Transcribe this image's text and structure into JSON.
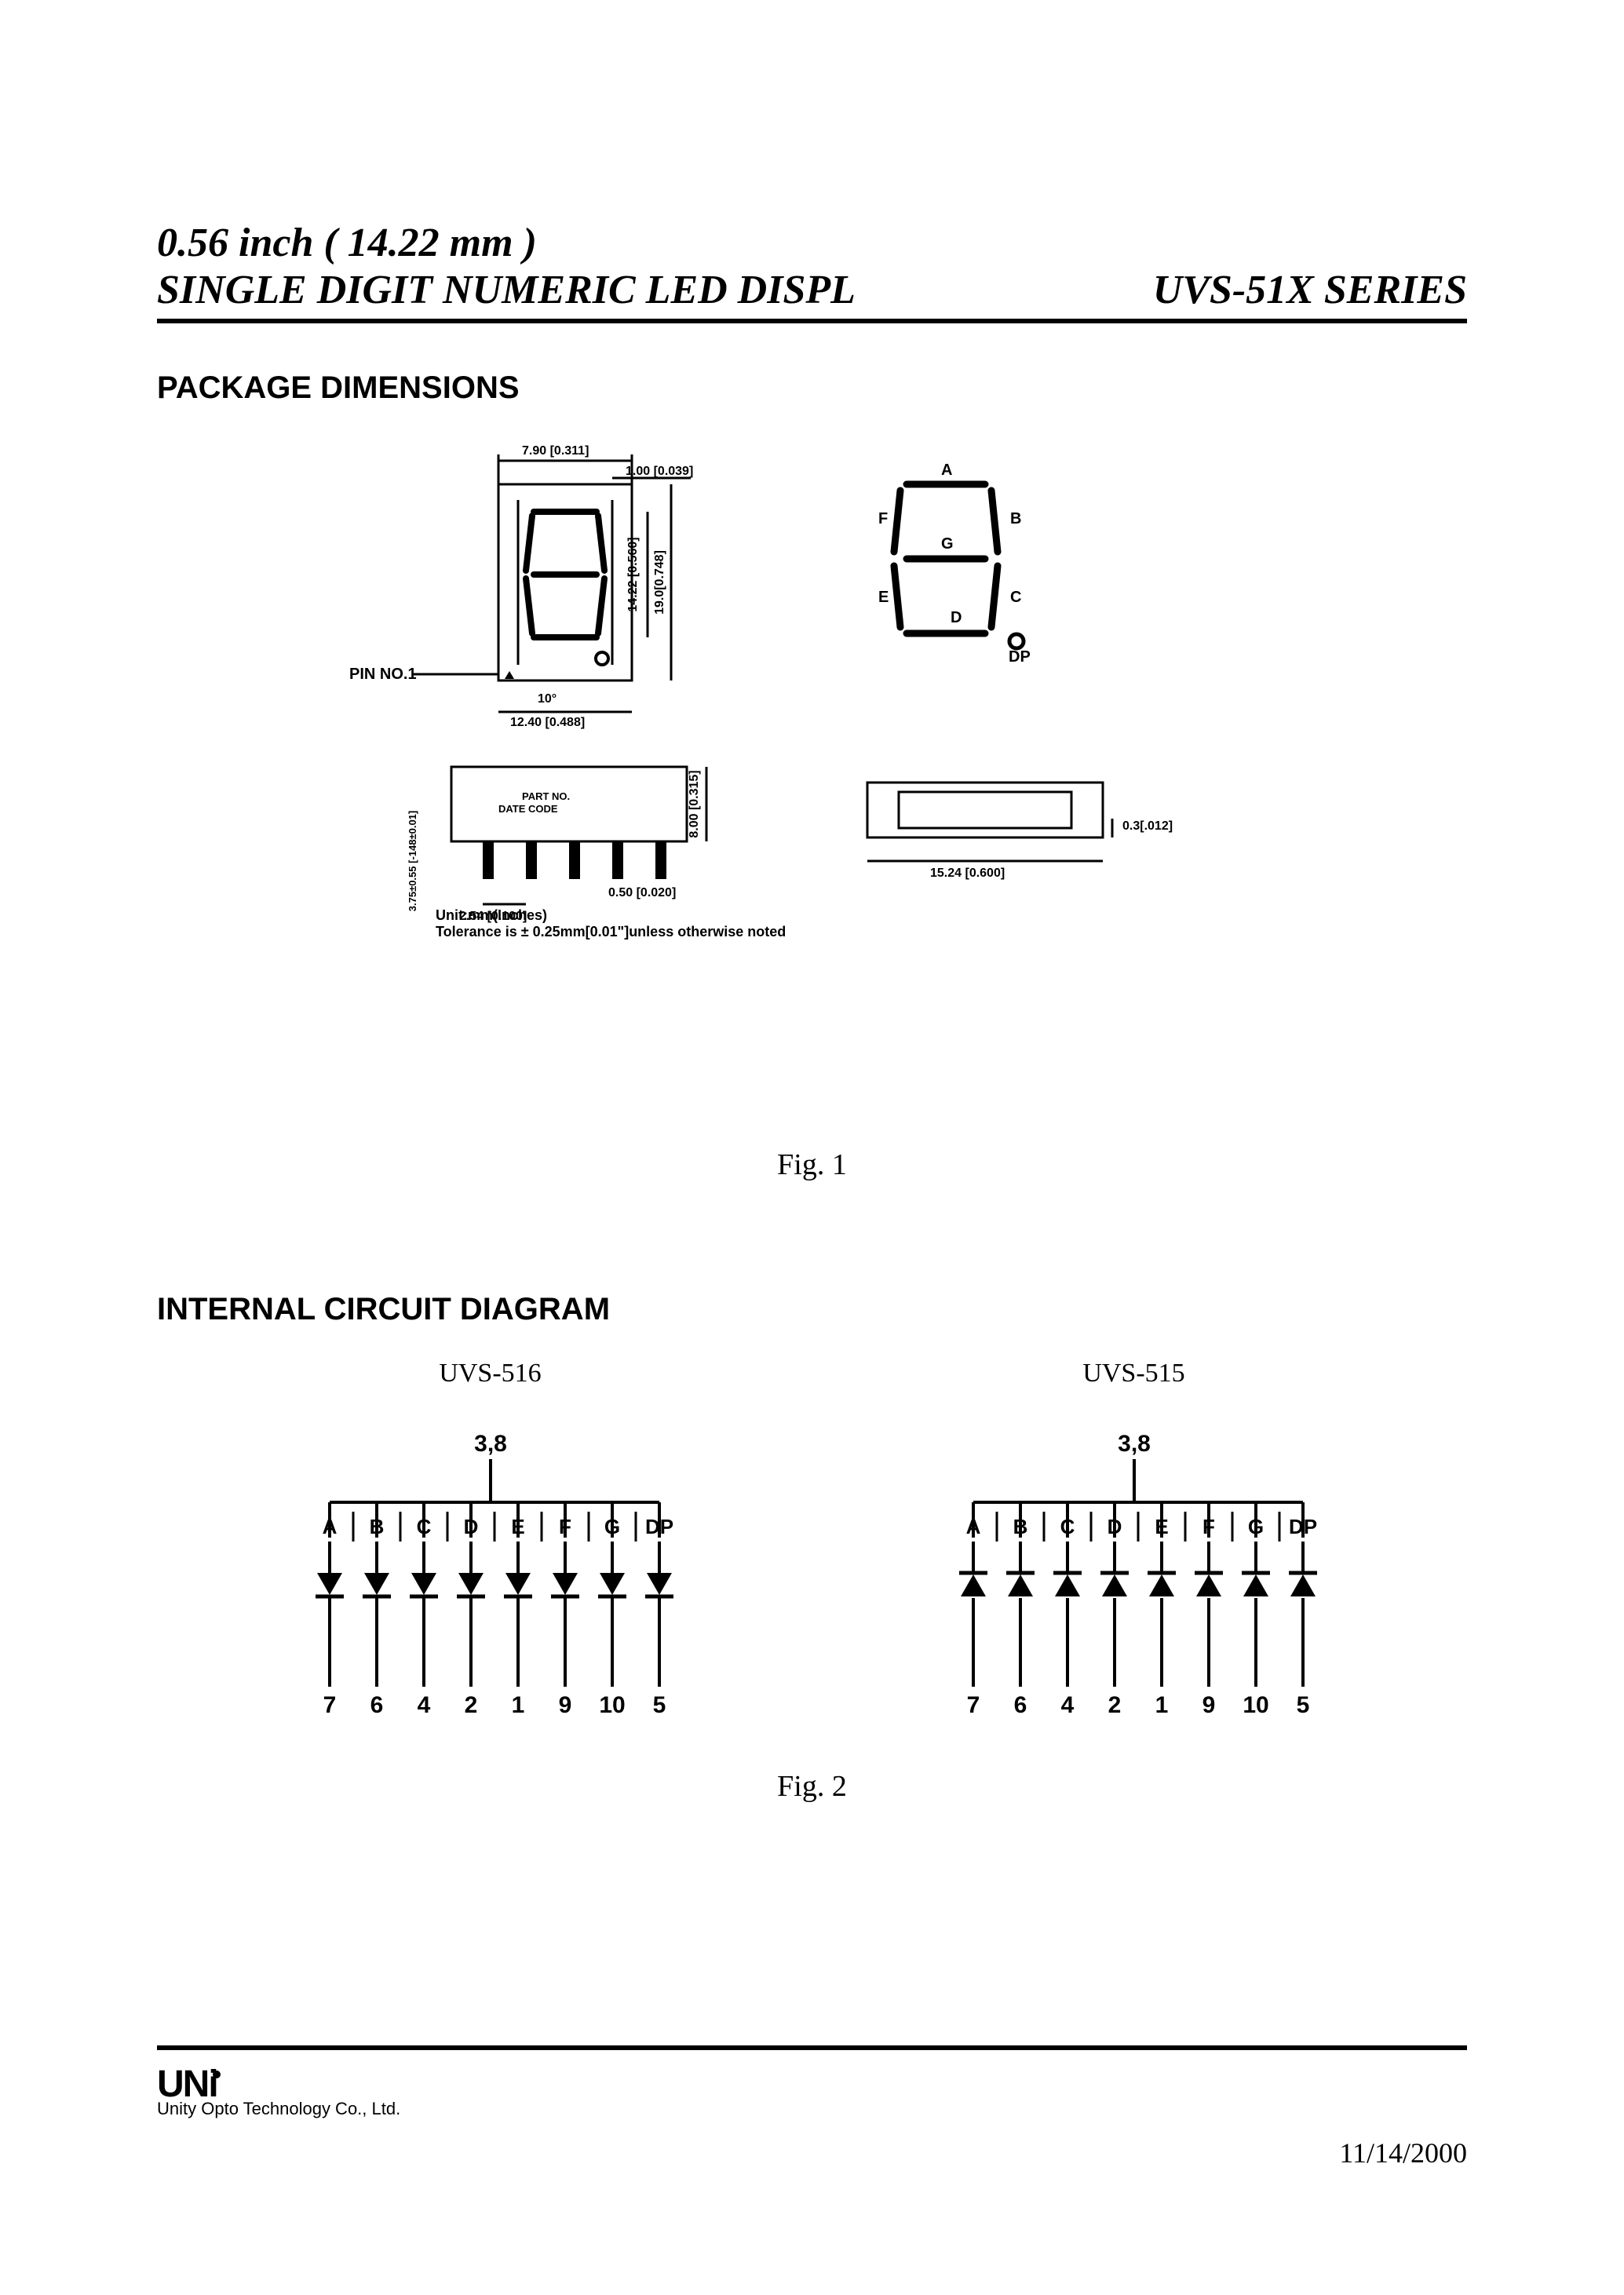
{
  "title": {
    "line1": "0.56 inch ( 14.22 mm )",
    "line2_left": "SINGLE DIGIT NUMERIC LED DISPL",
    "line2_right": "UVS-51X SERIES"
  },
  "sections": {
    "package_dimensions": "PACKAGE DIMENSIONS",
    "internal_circuit": "INTERNAL CIRCUIT DIAGRAM"
  },
  "package_diagram": {
    "pin_label": "PIN NO.1",
    "dims": {
      "top_w": "7.90 [0.311]",
      "top_inset": "1.00 [0.039]",
      "digit_h": "14.22 [0.560]",
      "display_h": "19.0[0.748]",
      "angle": "10°",
      "base_w": "12.40 [0.488]",
      "side_h": "8.00 [0.315]",
      "side_pin_pitch": "2.54 [0.100]",
      "side_pin_w": "0.50 [0.020]",
      "side_pin_len": "3.75±0.55 [-148±0.01]",
      "side_note1": "PART NO.",
      "side_note2": "DATE CODE",
      "right_w": "15.24 [0.600]",
      "right_h": "0.3[.012]"
    },
    "segments": [
      "A",
      "B",
      "C",
      "D",
      "E",
      "F",
      "G",
      "DP"
    ],
    "unit_line": "Unit:mm(Inches)",
    "tol_line": "Tolerance  is ± 0.25mm[0.01\"]unless  otherwise  noted",
    "caption": "Fig. 1"
  },
  "internal_circuits": {
    "left": {
      "title": "UVS-516",
      "common_pins": "3,8",
      "segments": [
        "A",
        "B",
        "C",
        "D",
        "E",
        "F",
        "G",
        "DP"
      ],
      "pins": [
        "7",
        "6",
        "4",
        "2",
        "1",
        "9",
        "10",
        "5"
      ],
      "type": "common-anode-top"
    },
    "right": {
      "title": "UVS-515",
      "common_pins": "3,8",
      "segments": [
        "A",
        "B",
        "C",
        "D",
        "E",
        "F",
        "G",
        "DP"
      ],
      "pins": [
        "7",
        "6",
        "4",
        "2",
        "1",
        "9",
        "10",
        "5"
      ],
      "type": "common-cathode-top"
    },
    "caption": "Fig. 2"
  },
  "footer": {
    "logo": "UNi",
    "company": "Unity Opto Technology Co., Ltd.",
    "date": "11/14/2000"
  },
  "styling": {
    "stroke": "#000000",
    "stroke_w": 3,
    "font_seg": 26,
    "font_dim": 16
  }
}
